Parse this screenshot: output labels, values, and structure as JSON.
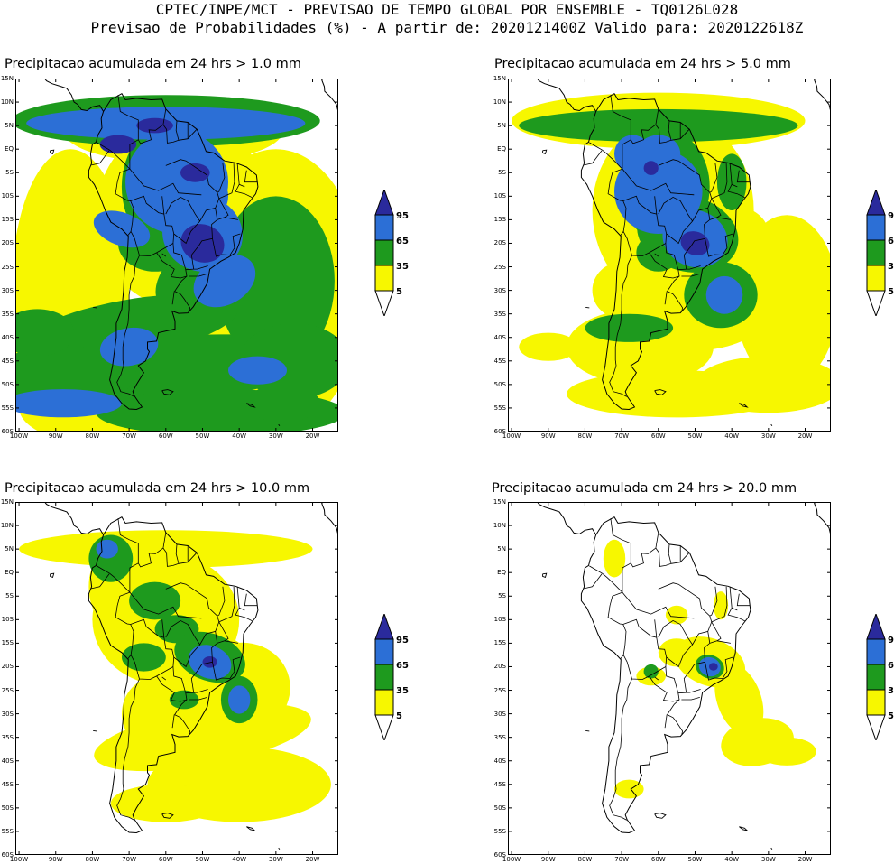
{
  "header": {
    "line1": "CPTEC/INPE/MCT - PREVISAO DE TEMPO GLOBAL POR ENSEMBLE - TQ0126L028",
    "line2": "Previsao de Probabilidades (%) -  A partir de: 2020121400Z  Valido para: 2020122618Z"
  },
  "axes": {
    "lat_labels": [
      "15N",
      "10N",
      "5N",
      "EQ",
      "5S",
      "10S",
      "15S",
      "20S",
      "25S",
      "30S",
      "35S",
      "40S",
      "45S",
      "50S",
      "55S",
      "60S"
    ],
    "lon_labels": [
      "100W",
      "90W",
      "80W",
      "70W",
      "60W",
      "50W",
      "40W",
      "30W",
      "20W"
    ]
  },
  "legend": {
    "labels": [
      "95",
      "65",
      "35",
      "5"
    ],
    "colors": {
      "high": "#2a2a9c",
      "blue": "#2c6fd6",
      "green": "#1e9a1e",
      "yellow": "#f7f700"
    }
  },
  "panels": [
    {
      "title": "Precipitacao acumulada em 24 hrs > 1.0 mm",
      "threshold_mm": 1.0
    },
    {
      "title": "Precipitacao acumulada em 24 hrs > 5.0 mm",
      "threshold_mm": 5.0
    },
    {
      "title": "Precipitacao acumulada em 24 hrs > 10.0 mm",
      "threshold_mm": 10.0
    },
    {
      "title": "Precipitacao acumulada em 24 hrs > 20.0 mm",
      "threshold_mm": 20.0
    }
  ]
}
